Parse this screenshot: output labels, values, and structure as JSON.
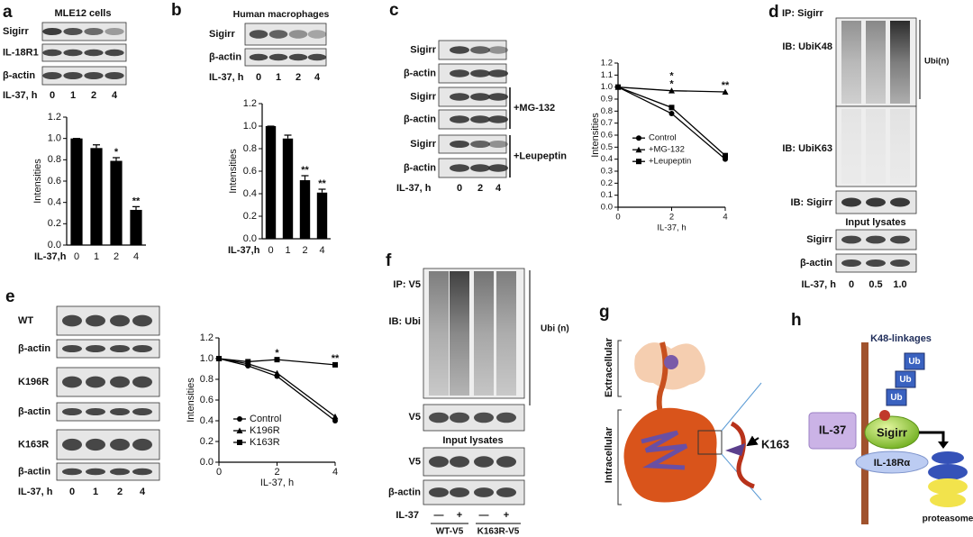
{
  "chart_data": [
    {
      "type": "bar",
      "xlabel": "IL-37,h",
      "ylabel": "Intensities",
      "categories": [
        "0",
        "1",
        "2",
        "4"
      ],
      "values": [
        1.0,
        0.91,
        0.79,
        0.33
      ],
      "errors": [
        0,
        0.03,
        0.03,
        0.03
      ],
      "color": "#000000",
      "ylim": [
        0,
        1.2
      ],
      "yticks": [
        {
          "value": 0,
          "label": "0.0"
        },
        0.2,
        0.4,
        0.6,
        0.8,
        {
          "value": 1,
          "label": "1.0"
        },
        1.2
      ],
      "annotations": [
        {
          "x": "2",
          "text": "*"
        },
        {
          "x": "4",
          "text": "**"
        }
      ]
    },
    {
      "type": "bar",
      "xlabel": "IL-37,h",
      "ylabel": "Intensities",
      "categories": [
        "0",
        "1",
        "2",
        "4"
      ],
      "values": [
        1.0,
        0.89,
        0.52,
        0.41
      ],
      "errors": [
        0,
        0.03,
        0.04,
        0.03
      ],
      "color": "#000000",
      "ylim": [
        0,
        1.2
      ],
      "yticks": [
        {
          "value": 0,
          "label": "0.0"
        },
        0.2,
        0.4,
        0.6,
        0.8,
        {
          "value": 1,
          "label": "1.0"
        },
        1.2
      ],
      "annotations": [
        {
          "x": "2",
          "text": "**"
        },
        {
          "x": "4",
          "text": "**"
        }
      ]
    },
    {
      "type": "line",
      "xlabel": "IL-37, h",
      "ylabel": "Intensities",
      "x": [
        0,
        2,
        4
      ],
      "xlim": [
        0,
        4
      ],
      "xticks": [
        0,
        2,
        4
      ],
      "ylim": [
        0,
        1.2
      ],
      "yticks": [
        {
          "value": 0,
          "label": "0.0"
        },
        0.1,
        0.2,
        0.3,
        0.4,
        0.5,
        0.6,
        0.7,
        0.8,
        0.9,
        {
          "value": 1,
          "label": "1.0"
        },
        1.1,
        1.2
      ],
      "legend": "center-left",
      "series": [
        {
          "name": "Control",
          "color": "#000000",
          "marker": "circle",
          "values": [
            1.0,
            0.78,
            0.4
          ]
        },
        {
          "name": "+MG-132",
          "color": "#000000",
          "marker": "triangle",
          "values": [
            1.0,
            0.97,
            0.96
          ]
        },
        {
          "name": "+Leupeptin",
          "color": "#000000",
          "marker": "square",
          "values": [
            1.0,
            0.83,
            0.43
          ]
        }
      ],
      "annotations": [
        {
          "x": 2,
          "text": "*"
        },
        {
          "x": 2,
          "text": "*"
        },
        {
          "x": 4,
          "text": "**"
        }
      ]
    },
    {
      "type": "line",
      "xlabel": "IL-37, h",
      "ylabel": "Intensities",
      "x": [
        0,
        1,
        2,
        4
      ],
      "xlim": [
        0,
        4
      ],
      "xticks": [
        0,
        2,
        4
      ],
      "ylim": [
        0,
        1.2
      ],
      "yticks": [
        {
          "value": 0,
          "label": "0.0"
        },
        0.2,
        0.4,
        0.6,
        0.8,
        {
          "value": 1,
          "label": "1.0"
        },
        1.2
      ],
      "legend": "lower-left",
      "series": [
        {
          "name": "Control",
          "color": "#000000",
          "marker": "circle",
          "values": [
            1.0,
            0.93,
            0.83,
            0.4
          ]
        },
        {
          "name": "K196R",
          "color": "#000000",
          "marker": "triangle",
          "values": [
            1.0,
            0.95,
            0.86,
            0.44
          ]
        },
        {
          "name": "K163R",
          "color": "#000000",
          "marker": "square",
          "values": [
            1.0,
            0.97,
            0.99,
            0.94
          ]
        }
      ],
      "annotations": [
        {
          "x": 2,
          "text": "*"
        },
        {
          "x": 4,
          "text": "**"
        }
      ]
    }
  ],
  "panels": {
    "a": {
      "label": "a",
      "title": "MLE12 cells",
      "blots": [
        "Sigirr",
        "IL-18R1",
        "β-actin"
      ],
      "lane_title": "IL-37, h",
      "lanes": [
        "0",
        "1",
        "2",
        "4"
      ]
    },
    "b": {
      "label": "b",
      "title": "Human macrophages",
      "blots": [
        "Sigirr",
        "β-actin"
      ],
      "lane_title": "IL-37, h",
      "lanes": [
        "0",
        "1",
        "2",
        "4"
      ]
    },
    "c": {
      "label": "c",
      "blots": [
        "Sigirr",
        "β-actin",
        "Sigirr",
        "β-actin",
        "Sigirr",
        "β-actin"
      ],
      "treatments": [
        "+MG-132",
        "+Leupeptin"
      ],
      "lane_title": "IL-37, h",
      "lanes": [
        "0",
        "2",
        "4"
      ]
    },
    "d": {
      "label": "d",
      "ip": "IP: Sigirr",
      "blots": [
        "IB: UbiK48",
        "IB: UbiK63",
        "IB: Sigirr"
      ],
      "smear": "Ubi(n)",
      "input": "Input lysates",
      "input_blots": [
        "Sigirr",
        "β-actin"
      ],
      "lane_title": "IL-37, h",
      "lanes": [
        "0",
        "0.5",
        "1.0"
      ]
    },
    "e": {
      "label": "e",
      "blots": [
        "WT",
        "β-actin",
        "K196R",
        "β-actin",
        "K163R",
        "β-actin"
      ],
      "lane_title": "IL-37, h",
      "lanes": [
        "0",
        "1",
        "2",
        "4"
      ]
    },
    "f": {
      "label": "f",
      "ip": "IP: V5",
      "blots": [
        "IB: Ubi",
        "V5"
      ],
      "smear": "Ubi (n)",
      "input": "Input lysates",
      "input_blots": [
        "V5",
        "β-actin"
      ],
      "lane_title": "IL-37",
      "lanes": [
        "—",
        "+",
        "—",
        "+"
      ],
      "groups": [
        "WT-V5",
        "K163R-V5"
      ]
    },
    "g": {
      "label": "g",
      "regions": [
        "Extracellular",
        "Intracellular"
      ],
      "residue": "K163"
    },
    "h": {
      "label": "h",
      "title": "K48-linkages",
      "ub": [
        "Ub",
        "Ub",
        "Ub"
      ],
      "ligand": "IL-37",
      "receptor": "Sigirr",
      "coreceptor": "IL-18Rα",
      "proteasome": "proteasome"
    }
  }
}
